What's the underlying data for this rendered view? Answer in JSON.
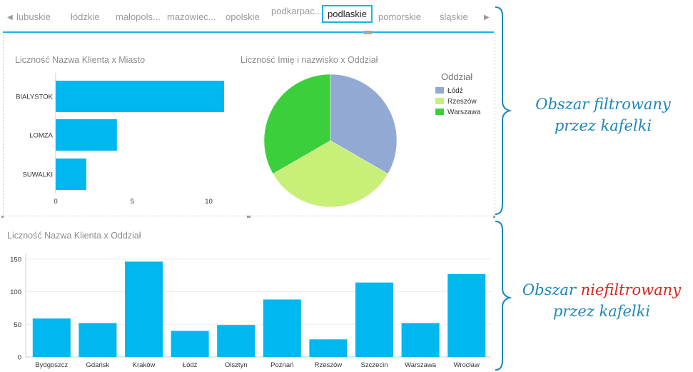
{
  "tiles": {
    "items": [
      "lubuskie",
      "łódzkie",
      "małopols...",
      "mazowiec...",
      "opolskie",
      "podkarpac...",
      "podlaskie",
      "pomorskie",
      "śląskie"
    ],
    "selected": "podlaskie",
    "prev_arrow": "◀",
    "next_arrow": "▶"
  },
  "chart_data": [
    {
      "type": "bar",
      "orientation": "horizontal",
      "title": "Liczność Nazwa Klienta x Miasto",
      "categories": [
        "BIALYSTOK",
        "LOMZA",
        "SUWALKI"
      ],
      "values": [
        11,
        4,
        2
      ],
      "xlim": [
        0,
        11
      ],
      "ticks": [
        0,
        5,
        10
      ],
      "color": "#00b7ef",
      "grid": false
    },
    {
      "type": "pie",
      "title": "Liczność Imię i nazwisko x Oddział",
      "legend_title": "Oddział",
      "legend_position": "right",
      "labels": [
        "Łódź",
        "Rzeszów",
        "Warszawa"
      ],
      "values": [
        1,
        1,
        1
      ],
      "colors": [
        "#91a9d3",
        "#c8ef78",
        "#3ccf3c"
      ]
    },
    {
      "type": "bar",
      "title": "Liczność Nazwa Klienta x Oddział",
      "categories": [
        "Bydgoszcz",
        "Gdańsk",
        "Kraków",
        "Łódź",
        "Olsztyn",
        "Poznań",
        "Rzeszów",
        "Szczecin",
        "Warszawa",
        "Wrocław"
      ],
      "values": [
        59,
        52,
        146,
        40,
        49,
        88,
        27,
        114,
        52,
        127
      ],
      "ylim": [
        0,
        160
      ],
      "ticks": [
        0,
        50,
        100,
        150
      ],
      "color": "#00b7ef",
      "grid": true
    }
  ],
  "annotations": {
    "filtered": [
      "Obszar filtrowany",
      "przez kafelki"
    ],
    "unfiltered_prefix": "Obszar ",
    "unfiltered_highlight": "niefiltrowany",
    "unfiltered_line2": "przez kafelki"
  },
  "colors": {
    "accent": "#1fb1e6",
    "bar": "#00b7ef",
    "annotation": "#1b87b8",
    "highlight": "#d9251c"
  }
}
